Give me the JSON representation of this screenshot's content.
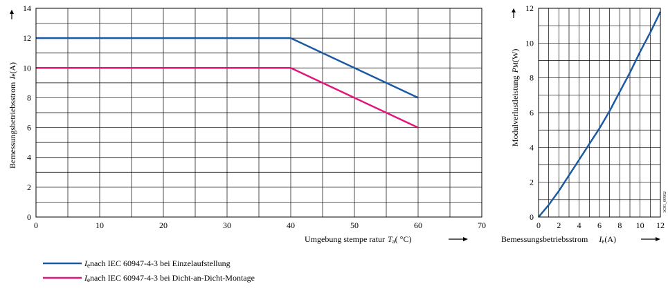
{
  "chart_data": [
    {
      "type": "line",
      "title": "",
      "ylabel": "Bemessungsbetriebsstrom",
      "ysymbol": "I",
      "ysymbol_sub": "e",
      "yunit": "(A)",
      "xlabel": "Umgebung stempe ratur",
      "xsymbol": "T",
      "xsymbol_sub": "a",
      "xunit": "( °C)",
      "xlim": [
        0,
        70
      ],
      "ylim": [
        0,
        14
      ],
      "xticks": [
        0,
        10,
        20,
        30,
        40,
        50,
        60,
        70
      ],
      "yticks": [
        0,
        2,
        4,
        6,
        8,
        10,
        12,
        14
      ],
      "grid": true,
      "series": [
        {
          "name": "nach IEC 60947-4-3 bei Einzelaufstellung",
          "name_symbol": "I",
          "name_sub": "e",
          "color": "#1b5aa2",
          "x": [
            0,
            40,
            60
          ],
          "y": [
            12,
            12,
            8
          ]
        },
        {
          "name": "nach IEC 60947-4-3 bei Dicht-an-Dicht-Montage",
          "name_symbol": "I",
          "name_sub": "e",
          "color": "#e2157a",
          "x": [
            0,
            40,
            60
          ],
          "y": [
            10,
            10,
            6
          ]
        }
      ],
      "legend_position": "bottom-left"
    },
    {
      "type": "line",
      "title": "",
      "ylabel": "Modulverlustleistung",
      "ysymbol": "P",
      "ysymbol_sub": "M",
      "yunit": "(W)",
      "xlabel": "Bemessungsbetriebsstrom",
      "xsymbol": "I",
      "xsymbol_sub": "e",
      "xunit": "(A)",
      "xlim": [
        0,
        12
      ],
      "ylim": [
        0,
        12
      ],
      "xticks": [
        0,
        2,
        4,
        6,
        8,
        10,
        12
      ],
      "yticks": [
        0,
        2,
        4,
        6,
        8,
        10,
        12
      ],
      "grid": true,
      "code": "1C01_00962",
      "series": [
        {
          "color": "#1b5aa2",
          "x": [
            0,
            1,
            2,
            3,
            4,
            5,
            6,
            7,
            8,
            9,
            10,
            11,
            12
          ],
          "y": [
            0,
            0.7,
            1.5,
            2.4,
            3.3,
            4.2,
            5.1,
            6.1,
            7.2,
            8.3,
            9.5,
            10.6,
            11.8
          ]
        }
      ]
    }
  ]
}
